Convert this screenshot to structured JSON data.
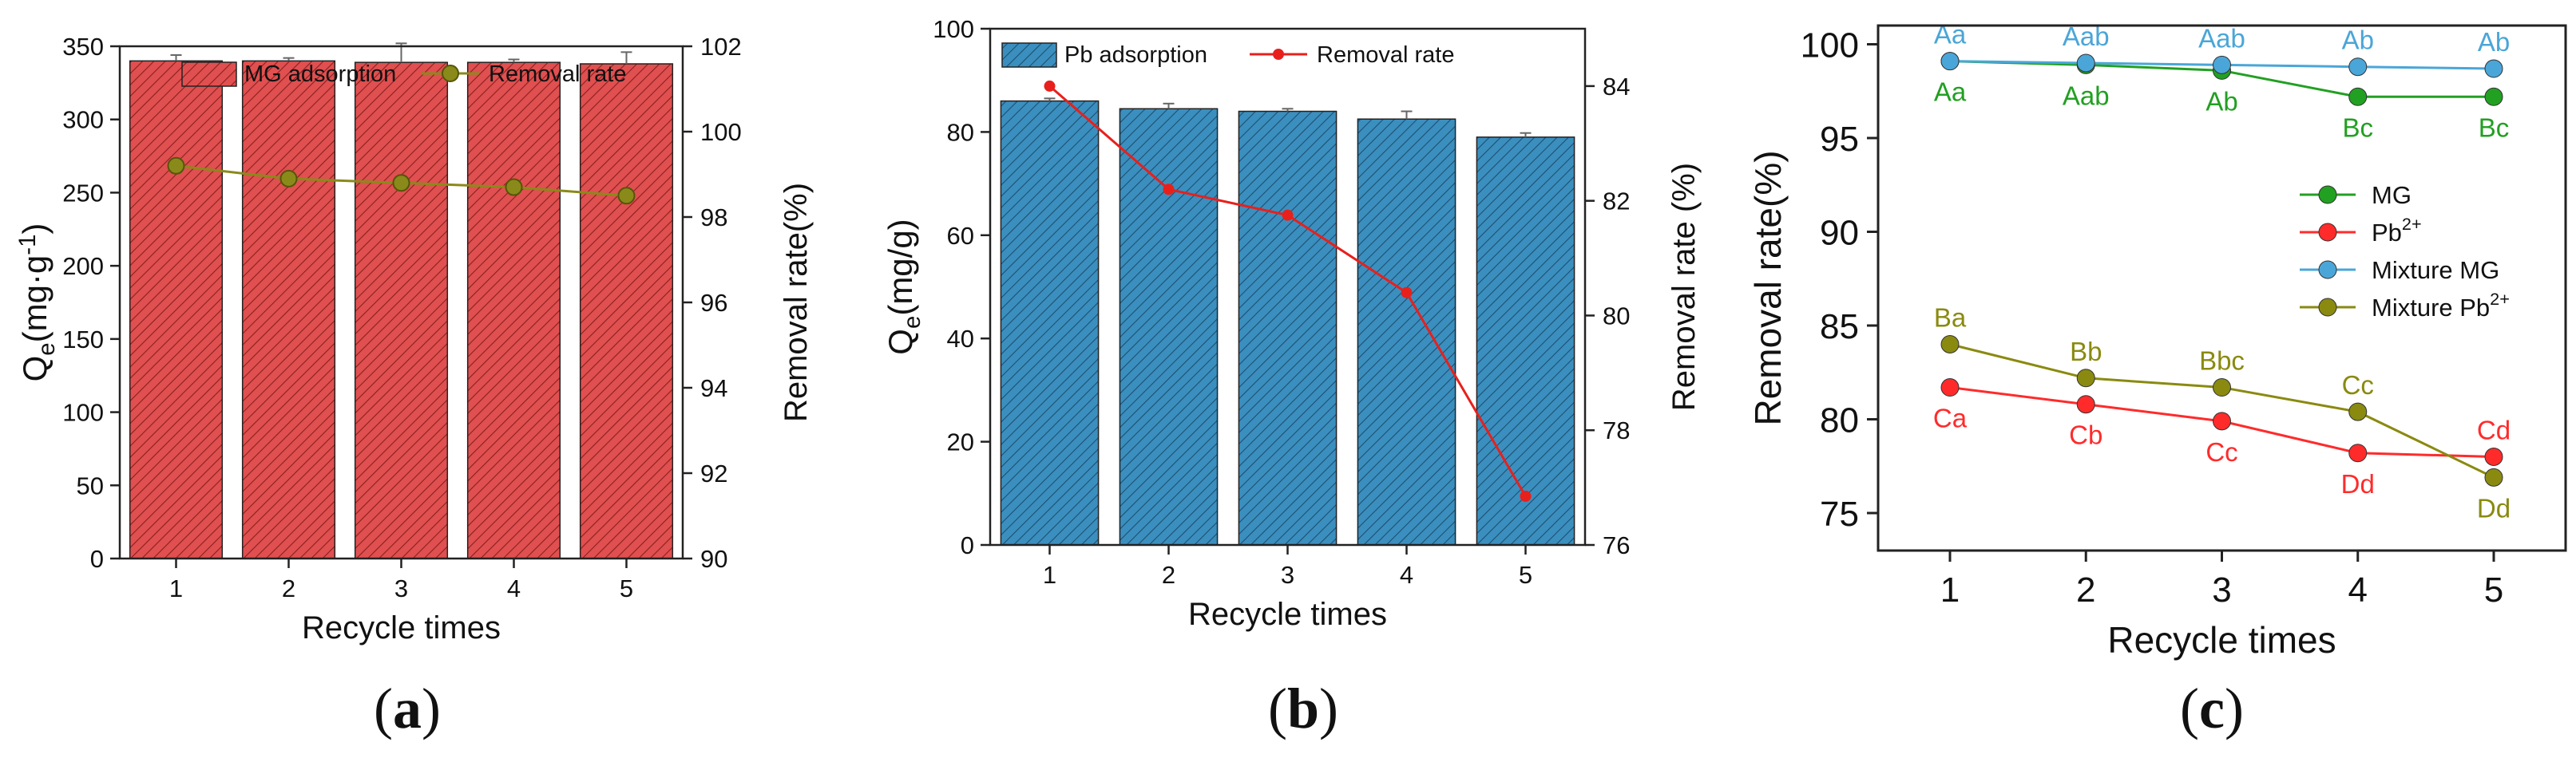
{
  "chart_data": [
    {
      "panel": "(a)",
      "panel_letter": "a",
      "type": "bar+line",
      "categories": [
        "1",
        "2",
        "3",
        "4",
        "5"
      ],
      "xlabel": "Recycle times",
      "ylabel_left": "Qe(mg·g-1)",
      "ylabel_right": "Removal rate(%)",
      "ylim_left": [
        0,
        350
      ],
      "ylim_right": [
        90,
        102
      ],
      "yticks_left": [
        0,
        50,
        100,
        150,
        200,
        250,
        300,
        350
      ],
      "yticks_right": [
        90,
        92,
        94,
        96,
        98,
        100,
        102
      ],
      "bar_color": "#e05050",
      "line_color": "#8a8a1a",
      "series": [
        {
          "name": "MG adsorption",
          "kind": "bar",
          "axis": "left",
          "values": [
            340,
            340,
            339,
            339,
            338
          ],
          "errors": [
            4,
            2,
            13,
            2,
            8
          ]
        },
        {
          "name": "Removal rate",
          "kind": "line",
          "axis": "right",
          "values": [
            99.2,
            98.9,
            98.8,
            98.7,
            98.5
          ]
        }
      ]
    },
    {
      "panel": "(b)",
      "panel_letter": "b",
      "type": "bar+line",
      "categories": [
        "1",
        "2",
        "3",
        "4",
        "5"
      ],
      "xlabel": "Recycle times",
      "ylabel_left": "Qe(mg/g)",
      "ylabel_right": "Removal rate (%)",
      "ylim_left": [
        0,
        100
      ],
      "ylim_right": [
        76,
        85
      ],
      "yticks_left": [
        0,
        20,
        40,
        60,
        80,
        100
      ],
      "yticks_right": [
        76,
        78,
        80,
        82,
        84
      ],
      "bar_color": "#3b8fbf",
      "line_color": "#e8201c",
      "series": [
        {
          "name": "Pb adsorption",
          "kind": "bar",
          "axis": "left",
          "values": [
            86,
            84.5,
            84,
            82.5,
            79
          ],
          "errors": [
            0.5,
            1,
            0.5,
            1.5,
            0.8
          ]
        },
        {
          "name": "Removal rate",
          "kind": "line",
          "axis": "right",
          "values": [
            84,
            82.2,
            81.75,
            80.4,
            76.85
          ]
        }
      ]
    },
    {
      "panel": "(c)",
      "panel_letter": "c",
      "type": "line",
      "categories": [
        "1",
        "2",
        "3",
        "4",
        "5"
      ],
      "xlabel": "Recycle times",
      "ylabel": "Removal rate(%)",
      "ylim": [
        73,
        101
      ],
      "yticks": [
        75,
        80,
        85,
        90,
        95,
        100
      ],
      "series": [
        {
          "name": "MG",
          "color": "#22a022",
          "values": [
            99.1,
            98.9,
            98.6,
            97.2,
            97.2
          ],
          "labels": [
            "Aa",
            "Aab",
            "Ab",
            "Bc",
            "Bc"
          ],
          "label_pos": "below"
        },
        {
          "name": "Pb2+",
          "color": "#ff2b2b",
          "values": [
            81.7,
            80.8,
            79.9,
            78.2,
            78.0
          ],
          "labels": [
            "Ca",
            "Cb",
            "Cc",
            "Dd",
            "Cd"
          ],
          "label_pos": [
            "below",
            "below",
            "below",
            "below",
            "above"
          ]
        },
        {
          "name": "Mixture MG",
          "color": "#4aa6d8",
          "values": [
            99.1,
            99.0,
            98.9,
            98.8,
            98.7
          ],
          "labels": [
            "Aa",
            "Aab",
            "Aab",
            "Ab",
            "Ab"
          ],
          "label_pos": "above"
        },
        {
          "name": "Mixture Pb2+",
          "color": "#8a8a10",
          "values": [
            84.0,
            82.2,
            81.7,
            80.4,
            76.9
          ],
          "labels": [
            "Ba",
            "Bb",
            "Bbc",
            "Cc",
            "Dd"
          ],
          "label_pos": [
            "above",
            "above",
            "above",
            "above",
            "below"
          ]
        }
      ]
    }
  ]
}
